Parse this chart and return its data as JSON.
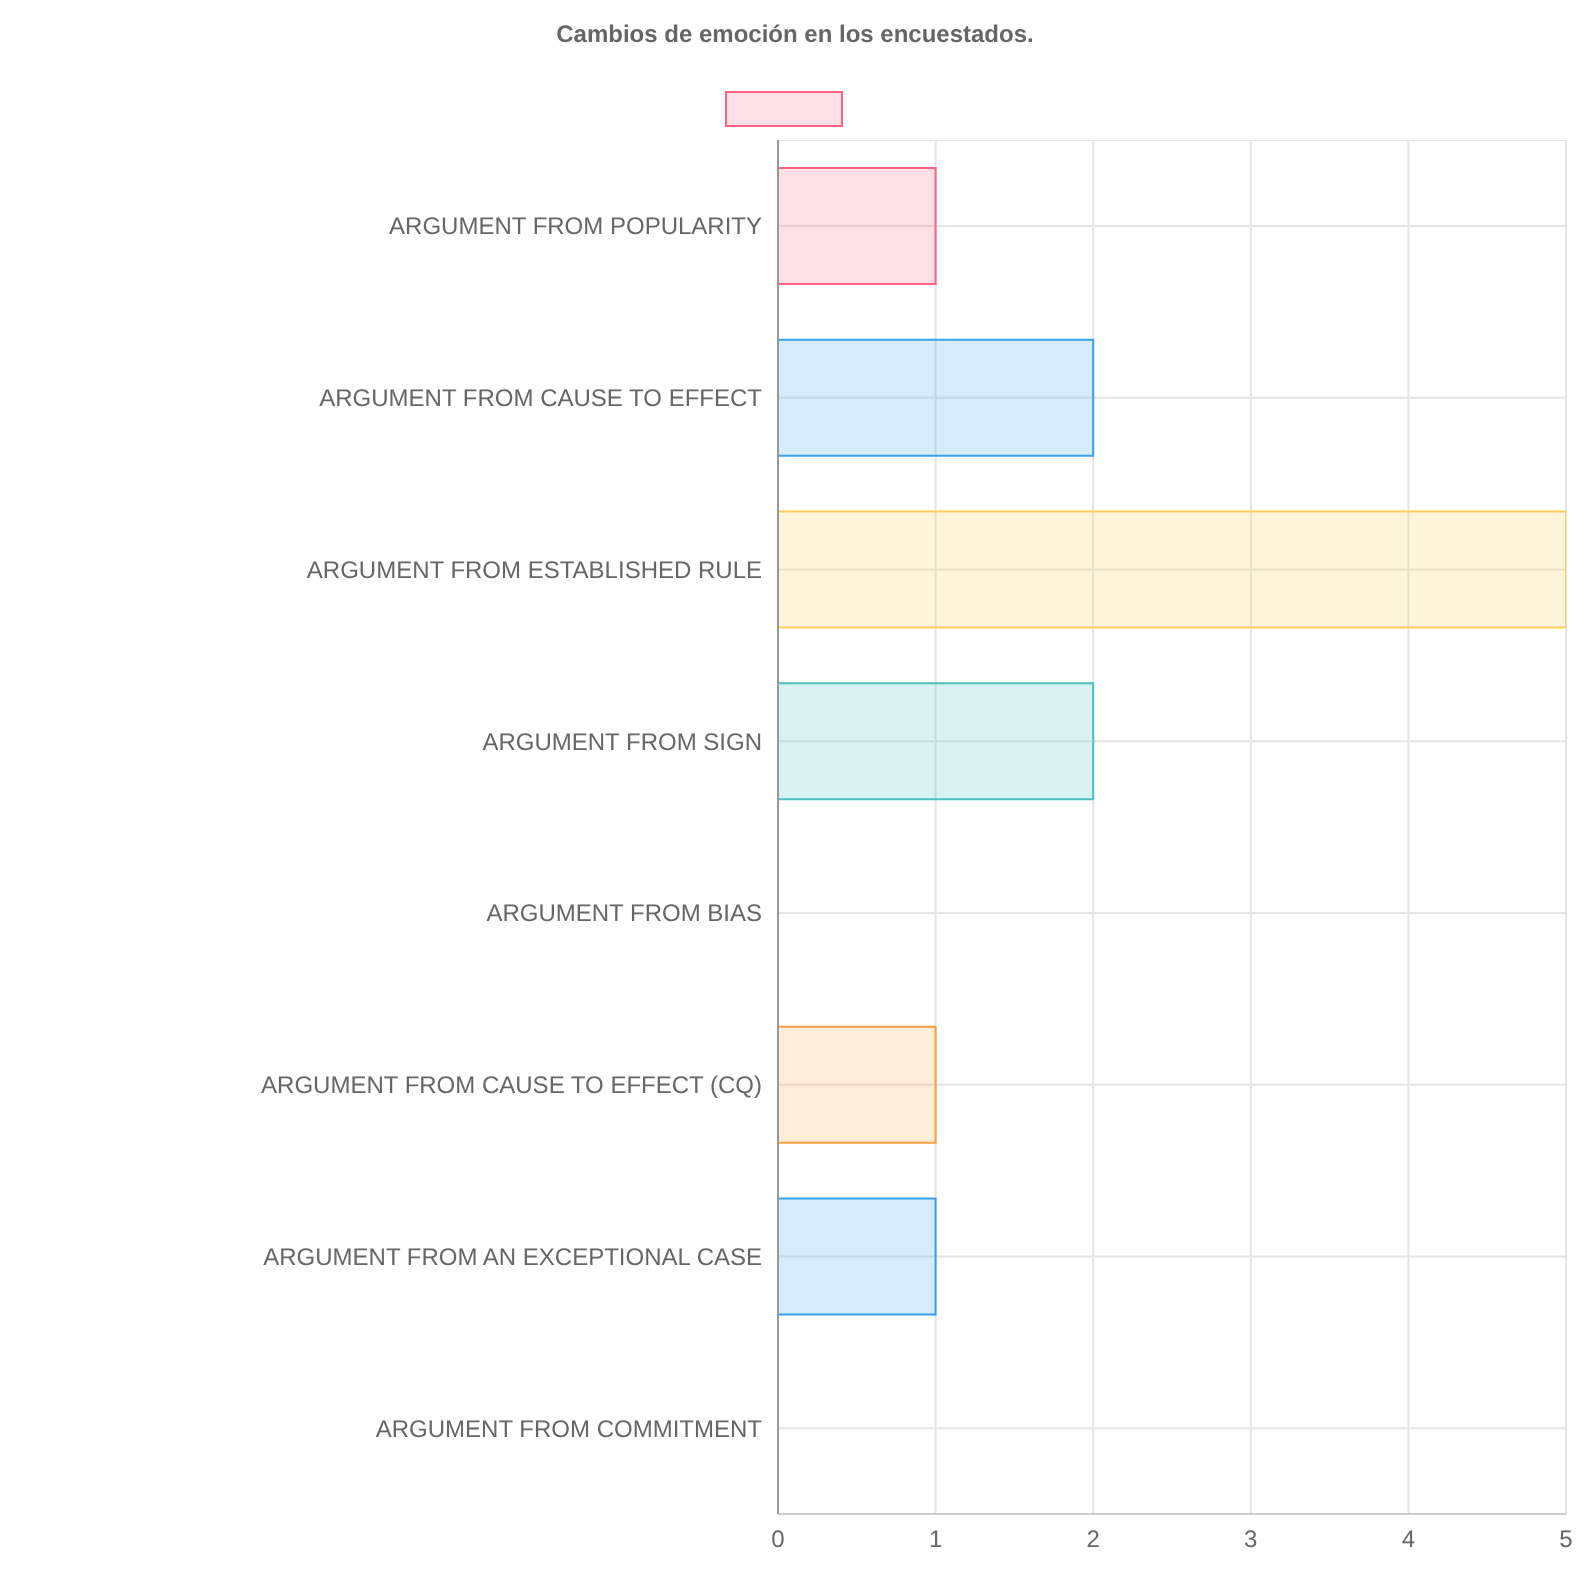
{
  "chart_data": {
    "type": "bar",
    "orientation": "horizontal",
    "title": "Cambios de emoción en los encuestados.",
    "categories": [
      "ARGUMENT FROM POPULARITY",
      "ARGUMENT FROM CAUSE TO EFFECT",
      "ARGUMENT FROM ESTABLISHED RULE",
      "ARGUMENT FROM SIGN",
      "ARGUMENT FROM BIAS",
      "ARGUMENT FROM CAUSE TO EFFECT (CQ)",
      "ARGUMENT FROM AN EXCEPTIONAL CASE",
      "ARGUMENT FROM COMMITMENT"
    ],
    "values": [
      1,
      2,
      5,
      2,
      0,
      1,
      1,
      0
    ],
    "colors": [
      "#ff6384",
      "#36a2eb",
      "#ffce56",
      "#4bc0c0",
      "#9966ff",
      "#ff9f40",
      "#36a2eb",
      "#c9cbcf"
    ],
    "xlim": [
      0,
      5
    ],
    "xticks": [
      0,
      1,
      2,
      3,
      4,
      5
    ],
    "grid": true
  }
}
